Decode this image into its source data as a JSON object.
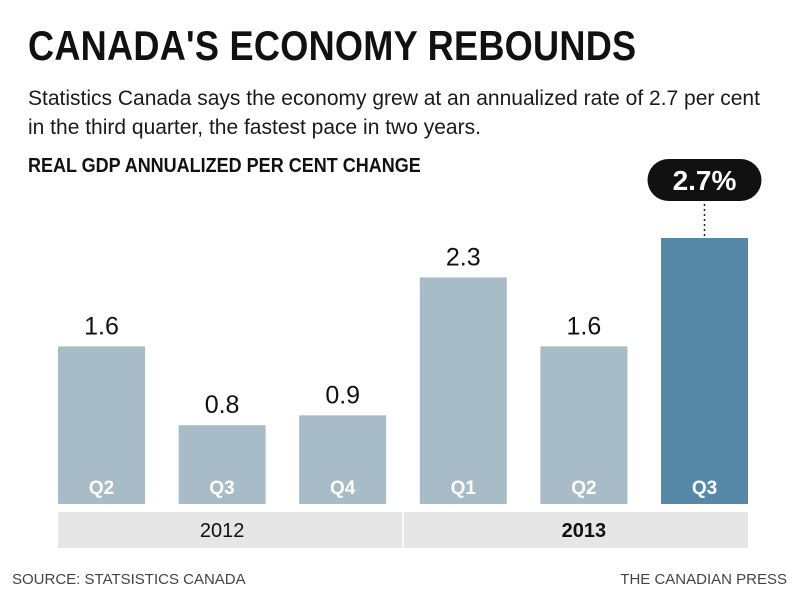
{
  "title": "CANADA'S ECONOMY REBOUNDS",
  "subtitle": "Statistics Canada says the economy grew at an annualized rate of 2.7 per cent in the third quarter, the fastest pace in two years.",
  "chart_label": "REAL GDP ANNUALIZED PER CENT CHANGE",
  "source": "SOURCE: STATSISTICS CANADA",
  "credit": "THE CANADIAN PRESS",
  "colors": {
    "bar": "#a8bcc7",
    "highlight": "#5689a8",
    "year_band": "#e6e6e6",
    "callout": "#111111"
  },
  "chart_data": {
    "type": "bar",
    "categories": [
      "Q2",
      "Q3",
      "Q4",
      "Q1",
      "Q2",
      "Q3"
    ],
    "values": [
      1.6,
      0.8,
      0.9,
      2.3,
      1.6,
      2.7
    ],
    "value_labels": [
      "1.6",
      "0.8",
      "0.9",
      "2.3",
      "1.6",
      "2.7%"
    ],
    "highlight_index": 5,
    "groups": [
      {
        "label": "2012",
        "bold": false,
        "count": 3
      },
      {
        "label": "2013",
        "bold": true,
        "count": 3
      }
    ],
    "title": "CANADA'S ECONOMY REBOUNDS",
    "ylabel": "REAL GDP ANNUALIZED PER CENT CHANGE",
    "xlabel": "",
    "ylim": [
      0,
      2.7
    ],
    "grid": false,
    "legend": "none"
  }
}
